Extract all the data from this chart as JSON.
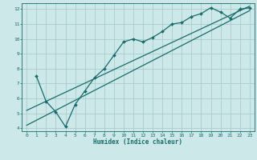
{
  "bg_color": "#cce8e8",
  "line_color": "#1a6b6b",
  "grid_color": "#aacccc",
  "xlabel": "Humidex (Indice chaleur)",
  "xlim": [
    -0.5,
    23.5
  ],
  "ylim": [
    3.8,
    12.4
  ],
  "xticks": [
    0,
    1,
    2,
    3,
    4,
    5,
    6,
    7,
    8,
    9,
    10,
    11,
    12,
    13,
    14,
    15,
    16,
    17,
    18,
    19,
    20,
    21,
    22,
    23
  ],
  "yticks": [
    4,
    5,
    6,
    7,
    8,
    9,
    10,
    11,
    12
  ],
  "line1_x": [
    1,
    2,
    3,
    4,
    5,
    6,
    7,
    8,
    9,
    10,
    11,
    12,
    13,
    14,
    15,
    16,
    17,
    18,
    19,
    20,
    21,
    22,
    23
  ],
  "line1_y": [
    7.5,
    5.8,
    5.1,
    4.1,
    5.6,
    6.5,
    7.4,
    8.0,
    8.9,
    9.8,
    10.0,
    9.8,
    10.1,
    10.5,
    11.0,
    11.1,
    11.5,
    11.7,
    12.1,
    11.8,
    11.4,
    12.0,
    12.1
  ],
  "line2_x": [
    0,
    23
  ],
  "line2_y": [
    4.2,
    11.9
  ],
  "line3_x": [
    0,
    23
  ],
  "line3_y": [
    5.2,
    12.2
  ]
}
